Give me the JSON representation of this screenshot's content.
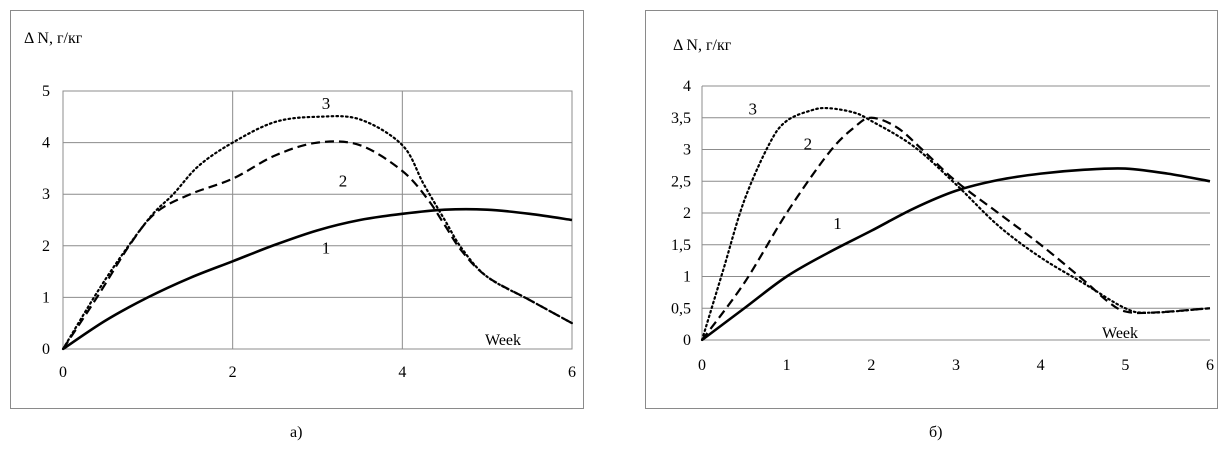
{
  "chart_data": [
    {
      "type": "line",
      "ylabel": "Δ N, г/кг",
      "xlabel": "Week",
      "caption": "а)",
      "xlim": [
        0,
        6
      ],
      "ylim": [
        0,
        5
      ],
      "xticks": [
        "0",
        "2",
        "4",
        "6"
      ],
      "yticks": [
        "0",
        "1",
        "2",
        "3",
        "4",
        "5"
      ],
      "grid": "both",
      "series": [
        {
          "name": "1",
          "style": "solid",
          "x": [
            0,
            0.5,
            1,
            1.5,
            2,
            2.5,
            3,
            3.5,
            4,
            4.5,
            5,
            5.5,
            6
          ],
          "y": [
            0,
            0.55,
            1.0,
            1.38,
            1.7,
            2.02,
            2.3,
            2.5,
            2.62,
            2.7,
            2.7,
            2.62,
            2.5
          ]
        },
        {
          "name": "2",
          "style": "dashed",
          "x": [
            0,
            0.4,
            0.8,
            1.1,
            1.5,
            2,
            2.5,
            3,
            3.5,
            4,
            4.3,
            4.5,
            4.7,
            5,
            5.5,
            6
          ],
          "y": [
            0,
            1.0,
            2.05,
            2.65,
            3.0,
            3.3,
            3.75,
            4.0,
            3.95,
            3.45,
            2.9,
            2.4,
            1.9,
            1.4,
            0.95,
            0.5
          ]
        },
        {
          "name": "3",
          "style": "dotted",
          "x": [
            0,
            0.5,
            1,
            1.3,
            1.6,
            2,
            2.5,
            3,
            3.5,
            4,
            4.25,
            4.5,
            4.7,
            5,
            5.5,
            6
          ],
          "y": [
            0,
            1.35,
            2.5,
            3.0,
            3.55,
            4.0,
            4.4,
            4.5,
            4.45,
            3.95,
            3.2,
            2.5,
            1.95,
            1.4,
            0.95,
            0.5
          ]
        }
      ]
    },
    {
      "type": "line",
      "ylabel": "Δ N, г/кг",
      "xlabel": "Week",
      "caption": "б)",
      "xlim": [
        0,
        6
      ],
      "ylim": [
        0,
        4
      ],
      "xticks": [
        "0",
        "1",
        "2",
        "3",
        "4",
        "5",
        "6"
      ],
      "yticks": [
        "0",
        "0,5",
        "1",
        "1,5",
        "2",
        "2,5",
        "3",
        "3,5",
        "4"
      ],
      "grid": "horizontal",
      "series": [
        {
          "name": "1",
          "style": "solid",
          "x": [
            0,
            0.5,
            1,
            1.5,
            2,
            2.5,
            3,
            3.5,
            4,
            4.5,
            5,
            5.5,
            6
          ],
          "y": [
            0,
            0.5,
            1.0,
            1.38,
            1.72,
            2.07,
            2.35,
            2.52,
            2.62,
            2.68,
            2.7,
            2.62,
            2.5
          ]
        },
        {
          "name": "2",
          "style": "dashed",
          "x": [
            0,
            0.5,
            1,
            1.5,
            1.8,
            2,
            2.3,
            2.6,
            3,
            3.5,
            4,
            4.5,
            4.8,
            5,
            5.3,
            6
          ],
          "y": [
            0,
            0.9,
            2.0,
            2.95,
            3.35,
            3.5,
            3.35,
            3.0,
            2.5,
            2.0,
            1.5,
            0.95,
            0.6,
            0.45,
            0.43,
            0.5
          ]
        },
        {
          "name": "3",
          "style": "dotted",
          "x": [
            0,
            0.25,
            0.5,
            0.8,
            1,
            1.3,
            1.5,
            1.8,
            2,
            2.5,
            3,
            3.5,
            4,
            4.5,
            5,
            5.3,
            6
          ],
          "y": [
            0,
            1.1,
            2.2,
            3.1,
            3.45,
            3.62,
            3.65,
            3.58,
            3.45,
            3.05,
            2.45,
            1.8,
            1.3,
            0.9,
            0.5,
            0.43,
            0.5
          ]
        }
      ]
    }
  ]
}
